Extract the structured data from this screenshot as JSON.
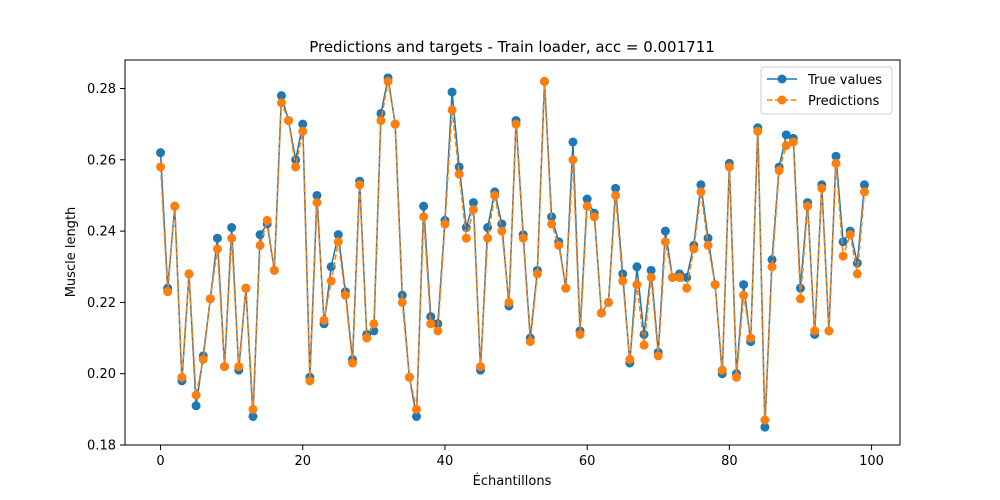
{
  "chart_data": {
    "type": "line",
    "title": "Predictions and targets - Train loader, acc = 0.001711",
    "xlabel": "Échantillons",
    "ylabel": "Muscle length",
    "xlim": [
      -5,
      104
    ],
    "ylim": [
      0.18,
      0.288
    ],
    "xticks": [
      0,
      20,
      40,
      60,
      80,
      100
    ],
    "yticks": [
      0.18,
      0.2,
      0.22,
      0.24,
      0.26,
      0.28
    ],
    "xtick_labels": [
      "0",
      "20",
      "40",
      "60",
      "80",
      "100"
    ],
    "ytick_labels": [
      "0.18",
      "0.20",
      "0.22",
      "0.24",
      "0.26",
      "0.28"
    ],
    "grid": false,
    "legend_position": "top-right",
    "x": [
      0,
      1,
      2,
      3,
      4,
      5,
      6,
      7,
      8,
      9,
      10,
      11,
      12,
      13,
      14,
      15,
      16,
      17,
      18,
      19,
      20,
      21,
      22,
      23,
      24,
      25,
      26,
      27,
      28,
      29,
      30,
      31,
      32,
      33,
      34,
      35,
      36,
      37,
      38,
      39,
      40,
      41,
      42,
      43,
      44,
      45,
      46,
      47,
      48,
      49,
      50,
      51,
      52,
      53,
      54,
      55,
      56,
      57,
      58,
      59,
      60,
      61,
      62,
      63,
      64,
      65,
      66,
      67,
      68,
      69,
      70,
      71,
      72,
      73,
      74,
      75,
      76,
      77,
      78,
      79,
      80,
      81,
      82,
      83,
      84,
      85,
      86,
      87,
      88,
      89,
      90,
      91,
      92,
      93,
      94,
      95,
      96,
      97,
      98,
      99
    ],
    "series": [
      {
        "name": "True values",
        "color": "#1f77b4",
        "linestyle": "solid",
        "marker": "circle",
        "values": [
          0.262,
          0.224,
          0.247,
          0.198,
          0.228,
          0.191,
          0.205,
          0.221,
          0.238,
          0.202,
          0.241,
          0.201,
          0.224,
          0.188,
          0.239,
          0.242,
          0.229,
          0.278,
          0.271,
          0.26,
          0.27,
          0.199,
          0.25,
          0.214,
          0.23,
          0.239,
          0.223,
          0.204,
          0.254,
          0.211,
          0.212,
          0.273,
          0.283,
          0.27,
          0.222,
          0.199,
          0.188,
          0.247,
          0.216,
          0.214,
          0.243,
          0.279,
          0.258,
          0.241,
          0.248,
          0.201,
          0.241,
          0.251,
          0.242,
          0.219,
          0.271,
          0.239,
          0.21,
          0.229,
          0.282,
          0.244,
          0.237,
          0.224,
          0.265,
          0.212,
          0.249,
          0.245,
          0.217,
          0.22,
          0.252,
          0.228,
          0.203,
          0.23,
          0.211,
          0.229,
          0.206,
          0.24,
          0.227,
          0.228,
          0.227,
          0.236,
          0.253,
          0.238,
          0.225,
          0.2,
          0.259,
          0.2,
          0.225,
          0.209,
          0.269,
          0.185,
          0.232,
          0.258,
          0.267,
          0.266,
          0.224,
          0.248,
          0.211,
          0.253,
          0.212,
          0.261,
          0.237,
          0.24,
          0.231,
          0.253
        ]
      },
      {
        "name": "Predictions",
        "color": "#ff7f0e",
        "linestyle": "dashed",
        "marker": "circle",
        "values": [
          0.258,
          0.223,
          0.247,
          0.199,
          0.228,
          0.194,
          0.204,
          0.221,
          0.235,
          0.202,
          0.238,
          0.202,
          0.224,
          0.19,
          0.236,
          0.243,
          0.229,
          0.276,
          0.271,
          0.258,
          0.268,
          0.198,
          0.248,
          0.215,
          0.226,
          0.237,
          0.222,
          0.203,
          0.253,
          0.21,
          0.214,
          0.271,
          0.282,
          0.27,
          0.22,
          0.199,
          0.19,
          0.244,
          0.214,
          0.212,
          0.242,
          0.274,
          0.256,
          0.238,
          0.246,
          0.202,
          0.238,
          0.25,
          0.24,
          0.22,
          0.27,
          0.238,
          0.209,
          0.228,
          0.282,
          0.242,
          0.236,
          0.224,
          0.26,
          0.211,
          0.247,
          0.244,
          0.217,
          0.22,
          0.25,
          0.226,
          0.204,
          0.225,
          0.208,
          0.227,
          0.205,
          0.237,
          0.227,
          0.227,
          0.224,
          0.235,
          0.251,
          0.236,
          0.225,
          0.201,
          0.258,
          0.199,
          0.222,
          0.21,
          0.268,
          0.187,
          0.23,
          0.257,
          0.264,
          0.265,
          0.221,
          0.247,
          0.212,
          0.252,
          0.212,
          0.259,
          0.233,
          0.239,
          0.228,
          0.251
        ]
      }
    ]
  }
}
